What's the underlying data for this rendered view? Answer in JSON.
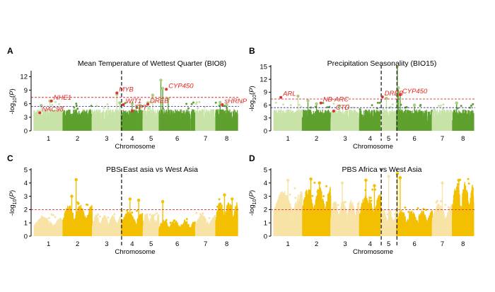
{
  "colors": {
    "green_dark": "#5fa02f",
    "green_light": "#c8e3a8",
    "yellow_dark": "#f2c000",
    "yellow_light": "#f8e3a6",
    "highlight": "#a8cf80",
    "threshold": "#e03030",
    "suggestive": "#3a3aa0",
    "gene_label": "#e3261e"
  },
  "chart_data": [
    {
      "id": "A",
      "type": "scatter",
      "subtype": "manhattan",
      "panel_label": "A",
      "title": "Mean Temperature of Wettest Quarter (BIO8)",
      "xlabel": "Chromosome",
      "ylabel": "-log10(P)",
      "ylim": [
        0,
        13
      ],
      "yticks": [
        0,
        3,
        6,
        9,
        12
      ],
      "palette": "green",
      "chromosomes": [
        "1",
        "2",
        "3",
        "4",
        "5",
        "6",
        "7",
        "8"
      ],
      "chrom_widths": [
        1.0,
        1.0,
        1.0,
        0.75,
        0.55,
        1.25,
        0.7,
        0.75
      ],
      "baseline_max": 4.8,
      "threshold_red": 7.4,
      "threshold_blue": 5.4,
      "dashed_chromosome_boundaries": [
        3
      ],
      "peaks": [
        {
          "chr": 1,
          "pos": 0.55,
          "y": 6.6
        },
        {
          "chr": 1,
          "pos": 0.25,
          "y": 5.6
        },
        {
          "chr": 3,
          "pos": 0.85,
          "y": 8.1
        },
        {
          "chr": 3,
          "pos": 0.95,
          "y": 6.2
        },
        {
          "chr": 4,
          "pos": 0.5,
          "y": 6.0
        },
        {
          "chr": 4,
          "pos": 0.85,
          "y": 5.6
        },
        {
          "chr": 5,
          "pos": 0.3,
          "y": 6.2
        },
        {
          "chr": 5,
          "pos": 0.6,
          "y": 7.9
        },
        {
          "chr": 6,
          "pos": 0.05,
          "y": 11.2
        },
        {
          "chr": 6,
          "pos": 0.1,
          "y": 9.4
        },
        {
          "chr": 6,
          "pos": 0.25,
          "y": 7.1
        },
        {
          "chr": 8,
          "pos": 0.2,
          "y": 6.3
        },
        {
          "chr": 8,
          "pos": 0.5,
          "y": 5.8
        }
      ],
      "gene_labels": [
        {
          "text": "NHE1",
          "chr": 1,
          "pos": 0.6,
          "y": 6.6
        },
        {
          "text": "NAC98",
          "chr": 1,
          "pos": 0.2,
          "y": 4.0
        },
        {
          "text": "MYB",
          "chr": 3,
          "pos": 0.85,
          "y": 8.4
        },
        {
          "text": "WIT1",
          "chr": 4,
          "pos": 0.1,
          "y": 5.8
        },
        {
          "text": "TPT",
          "chr": 4,
          "pos": 0.5,
          "y": 4.4
        },
        {
          "text": "DREB",
          "chr": 5,
          "pos": 0.3,
          "y": 5.9
        },
        {
          "text": "CYP450",
          "chr": 6,
          "pos": 0.2,
          "y": 9.2
        },
        {
          "text": "sHRNP",
          "chr": 8,
          "pos": 0.3,
          "y": 5.8
        }
      ]
    },
    {
      "id": "B",
      "type": "scatter",
      "subtype": "manhattan",
      "panel_label": "B",
      "title": "Precipitation Seasonality (BIO15)",
      "xlabel": "Chromosome",
      "ylabel": "-log10(P)",
      "ylim": [
        0,
        15
      ],
      "yticks": [
        0,
        3,
        6,
        9,
        12,
        15
      ],
      "palette": "green",
      "chromosomes": [
        "1",
        "2",
        "3",
        "4",
        "5",
        "6",
        "7",
        "8"
      ],
      "chrom_widths": [
        1.0,
        1.0,
        1.0,
        0.75,
        0.55,
        1.25,
        0.7,
        0.75
      ],
      "baseline_max": 5.0,
      "threshold_red": 7.4,
      "threshold_blue": 5.4,
      "dashed_chromosome_boundaries": [
        4,
        5
      ],
      "peaks": [
        {
          "chr": 1,
          "pos": 0.85,
          "y": 8.1
        },
        {
          "chr": 2,
          "pos": 0.2,
          "y": 7.0
        },
        {
          "chr": 2,
          "pos": 0.5,
          "y": 6.3
        },
        {
          "chr": 3,
          "pos": 0.3,
          "y": 5.8
        },
        {
          "chr": 5,
          "pos": 0.35,
          "y": 7.6
        },
        {
          "chr": 6,
          "pos": 0.02,
          "y": 15.2
        },
        {
          "chr": 6,
          "pos": 0.05,
          "y": 10.0
        },
        {
          "chr": 6,
          "pos": 0.1,
          "y": 8.5
        },
        {
          "chr": 6,
          "pos": 0.5,
          "y": 6.0
        },
        {
          "chr": 8,
          "pos": 0.2,
          "y": 6.5
        }
      ],
      "gene_labels": [
        {
          "text": "ARL",
          "chr": 1,
          "pos": 0.25,
          "y": 7.8
        },
        {
          "text": "NB-ARC",
          "chr": 2,
          "pos": 0.65,
          "y": 6.5
        },
        {
          "text": "CTD",
          "chr": 3,
          "pos": 0.1,
          "y": 4.6
        },
        {
          "text": "DREB",
          "chr": 5,
          "pos": 0.1,
          "y": 7.9
        },
        {
          "text": "CYP450",
          "chr": 6,
          "pos": 0.1,
          "y": 8.4
        }
      ]
    },
    {
      "id": "C",
      "type": "scatter",
      "subtype": "manhattan",
      "panel_label": "C",
      "title": "PBS East asia vs West Asia",
      "xlabel": "Chromosome",
      "ylabel": "-log10(P)",
      "ylim": [
        0,
        5
      ],
      "yticks": [
        0,
        1,
        2,
        3,
        4,
        5
      ],
      "palette": "yellow",
      "chromosomes": [
        "1",
        "2",
        "3",
        "4",
        "5",
        "6",
        "7",
        "8"
      ],
      "chrom_widths": [
        1.0,
        1.0,
        1.0,
        0.75,
        0.55,
        1.25,
        0.7,
        0.75
      ],
      "chrom_level": [
        1.2,
        1.9,
        1.3,
        1.5,
        1.4,
        1.0,
        1.3,
        2.1
      ],
      "threshold_red": 2.0,
      "dashed_chromosome_boundaries": [
        3
      ],
      "peaks": [
        {
          "chr": 2,
          "pos": 0.45,
          "y": 4.25
        },
        {
          "chr": 2,
          "pos": 0.3,
          "y": 3.0
        },
        {
          "chr": 4,
          "pos": 0.4,
          "y": 2.8
        },
        {
          "chr": 4,
          "pos": 0.8,
          "y": 2.7
        },
        {
          "chr": 6,
          "pos": 0.1,
          "y": 2.6
        },
        {
          "chr": 8,
          "pos": 0.4,
          "y": 3.1
        },
        {
          "chr": 8,
          "pos": 0.75,
          "y": 2.8
        }
      ],
      "gene_labels": []
    },
    {
      "id": "D",
      "type": "scatter",
      "subtype": "manhattan",
      "panel_label": "D",
      "title": "PBS Africa vs West Asia",
      "xlabel": "Chromosome",
      "ylabel": "-log10(P)",
      "ylim": [
        0,
        5
      ],
      "yticks": [
        0,
        1,
        2,
        3,
        4,
        5
      ],
      "palette": "yellow",
      "chromosomes": [
        "1",
        "2",
        "3",
        "4",
        "5",
        "6",
        "7",
        "8"
      ],
      "chrom_widths": [
        1.0,
        1.0,
        1.0,
        0.75,
        0.55,
        1.25,
        0.7,
        0.75
      ],
      "chrom_level": [
        2.8,
        3.0,
        2.2,
        2.6,
        1.6,
        1.6,
        2.0,
        3.3
      ],
      "threshold_red": 2.0,
      "dashed_chromosome_boundaries": [
        4,
        5
      ],
      "peaks": [
        {
          "chr": 1,
          "pos": 0.5,
          "y": 4.2
        },
        {
          "chr": 2,
          "pos": 0.3,
          "y": 4.3
        },
        {
          "chr": 2,
          "pos": 0.6,
          "y": 4.0
        },
        {
          "chr": 3,
          "pos": 0.4,
          "y": 4.0
        },
        {
          "chr": 4,
          "pos": 0.3,
          "y": 4.2
        },
        {
          "chr": 4,
          "pos": 0.7,
          "y": 3.8
        },
        {
          "chr": 5,
          "pos": 0.5,
          "y": 4.5
        },
        {
          "chr": 6,
          "pos": 0.02,
          "y": 4.7
        },
        {
          "chr": 6,
          "pos": 0.1,
          "y": 4.4
        },
        {
          "chr": 7,
          "pos": 0.5,
          "y": 4.0
        },
        {
          "chr": 8,
          "pos": 0.3,
          "y": 4.2
        }
      ],
      "gene_labels": []
    }
  ]
}
